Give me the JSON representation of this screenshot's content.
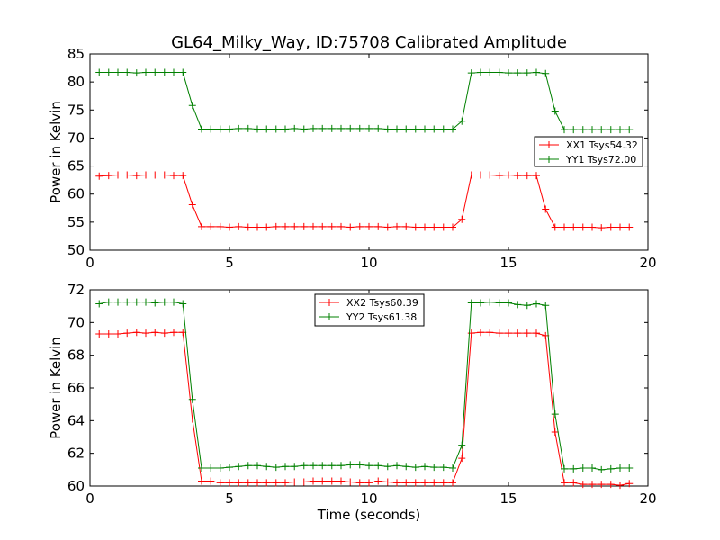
{
  "title": "GL64_Milky_Way, ID:75708 Calibrated Amplitude",
  "colors": {
    "red": "#ff0000",
    "green": "#008000"
  },
  "chart_data": [
    {
      "type": "line",
      "ylabel": "Power in Kelvin",
      "xlabel": "",
      "xlim": [
        0,
        20
      ],
      "ylim": [
        50,
        85
      ],
      "xticks": [
        0,
        5,
        10,
        15,
        20
      ],
      "yticks": [
        50,
        55,
        60,
        65,
        70,
        75,
        80,
        85
      ],
      "legend_position": "right",
      "x": [
        0.33,
        0.67,
        1.0,
        1.33,
        1.67,
        2.0,
        2.33,
        2.67,
        3.0,
        3.33,
        3.67,
        4.0,
        4.33,
        4.67,
        5.0,
        5.33,
        5.67,
        6.0,
        6.33,
        6.67,
        7.0,
        7.33,
        7.67,
        8.0,
        8.33,
        8.67,
        9.0,
        9.33,
        9.67,
        10.0,
        10.33,
        10.67,
        11.0,
        11.33,
        11.67,
        12.0,
        12.33,
        12.67,
        13.0,
        13.33,
        13.67,
        14.0,
        14.33,
        14.67,
        15.0,
        15.33,
        15.67,
        16.0,
        16.33,
        16.67,
        17.0,
        17.33,
        17.67,
        18.0,
        18.33,
        18.67,
        19.0,
        19.33
      ],
      "series": [
        {
          "name": "XX1 Tsys54.32",
          "color": "#ff0000",
          "values": [
            63.2,
            63.3,
            63.4,
            63.4,
            63.3,
            63.4,
            63.4,
            63.4,
            63.3,
            63.3,
            58.1,
            54.2,
            54.2,
            54.2,
            54.1,
            54.2,
            54.1,
            54.1,
            54.1,
            54.2,
            54.2,
            54.2,
            54.2,
            54.2,
            54.2,
            54.2,
            54.2,
            54.1,
            54.2,
            54.2,
            54.2,
            54.1,
            54.2,
            54.2,
            54.1,
            54.1,
            54.1,
            54.1,
            54.1,
            55.5,
            63.4,
            63.4,
            63.4,
            63.3,
            63.4,
            63.3,
            63.3,
            63.3,
            57.3,
            54.1,
            54.1,
            54.1,
            54.1,
            54.1,
            54.0,
            54.1,
            54.1,
            54.1
          ]
        },
        {
          "name": "YY1 Tsys72.00",
          "color": "#008000",
          "values": [
            81.7,
            81.7,
            81.7,
            81.7,
            81.6,
            81.7,
            81.7,
            81.7,
            81.7,
            81.7,
            75.8,
            71.6,
            71.6,
            71.6,
            71.6,
            71.7,
            71.7,
            71.6,
            71.6,
            71.6,
            71.6,
            71.7,
            71.6,
            71.7,
            71.7,
            71.7,
            71.7,
            71.7,
            71.7,
            71.7,
            71.7,
            71.6,
            71.6,
            71.6,
            71.6,
            71.6,
            71.6,
            71.6,
            71.6,
            73.0,
            81.6,
            81.7,
            81.7,
            81.7,
            81.6,
            81.6,
            81.6,
            81.7,
            81.5,
            74.8,
            71.5,
            71.5,
            71.5,
            71.5,
            71.5,
            71.5,
            71.5,
            71.5
          ]
        }
      ]
    },
    {
      "type": "line",
      "ylabel": "Power in Kelvin",
      "xlabel": "Time (seconds)",
      "xlim": [
        0,
        20
      ],
      "ylim": [
        60,
        72
      ],
      "xticks": [
        0,
        5,
        10,
        15,
        20
      ],
      "yticks": [
        60,
        62,
        64,
        66,
        68,
        70,
        72
      ],
      "legend_position": "upper center",
      "x": [
        0.33,
        0.67,
        1.0,
        1.33,
        1.67,
        2.0,
        2.33,
        2.67,
        3.0,
        3.33,
        3.67,
        4.0,
        4.33,
        4.67,
        5.0,
        5.33,
        5.67,
        6.0,
        6.33,
        6.67,
        7.0,
        7.33,
        7.67,
        8.0,
        8.33,
        8.67,
        9.0,
        9.33,
        9.67,
        10.0,
        10.33,
        10.67,
        11.0,
        11.33,
        11.67,
        12.0,
        12.33,
        12.67,
        13.0,
        13.33,
        13.67,
        14.0,
        14.33,
        14.67,
        15.0,
        15.33,
        15.67,
        16.0,
        16.33,
        16.67,
        17.0,
        17.33,
        17.67,
        18.0,
        18.33,
        18.67,
        19.0,
        19.33
      ],
      "series": [
        {
          "name": "XX2 Tsys60.39",
          "color": "#ff0000",
          "values": [
            69.3,
            69.3,
            69.3,
            69.35,
            69.4,
            69.35,
            69.4,
            69.35,
            69.4,
            69.4,
            64.1,
            60.3,
            60.3,
            60.2,
            60.2,
            60.2,
            60.2,
            60.2,
            60.2,
            60.2,
            60.2,
            60.25,
            60.25,
            60.3,
            60.3,
            60.3,
            60.3,
            60.25,
            60.2,
            60.2,
            60.3,
            60.25,
            60.2,
            60.2,
            60.2,
            60.2,
            60.2,
            60.2,
            60.2,
            61.7,
            69.35,
            69.4,
            69.4,
            69.35,
            69.35,
            69.35,
            69.35,
            69.35,
            69.2,
            63.3,
            60.2,
            60.2,
            60.1,
            60.1,
            60.1,
            60.1,
            60.05,
            60.15
          ]
        },
        {
          "name": "YY2 Tsys61.38",
          "color": "#008000",
          "values": [
            71.15,
            71.25,
            71.25,
            71.25,
            71.25,
            71.25,
            71.2,
            71.25,
            71.25,
            71.15,
            65.3,
            61.1,
            61.1,
            61.1,
            61.15,
            61.2,
            61.25,
            61.25,
            61.2,
            61.15,
            61.2,
            61.2,
            61.25,
            61.25,
            61.25,
            61.25,
            61.25,
            61.3,
            61.3,
            61.25,
            61.25,
            61.2,
            61.25,
            61.2,
            61.15,
            61.2,
            61.15,
            61.15,
            61.1,
            62.5,
            71.2,
            71.2,
            71.25,
            71.2,
            71.2,
            71.1,
            71.05,
            71.15,
            71.05,
            64.4,
            61.05,
            61.05,
            61.1,
            61.1,
            61.0,
            61.05,
            61.1,
            61.1
          ]
        }
      ]
    }
  ]
}
